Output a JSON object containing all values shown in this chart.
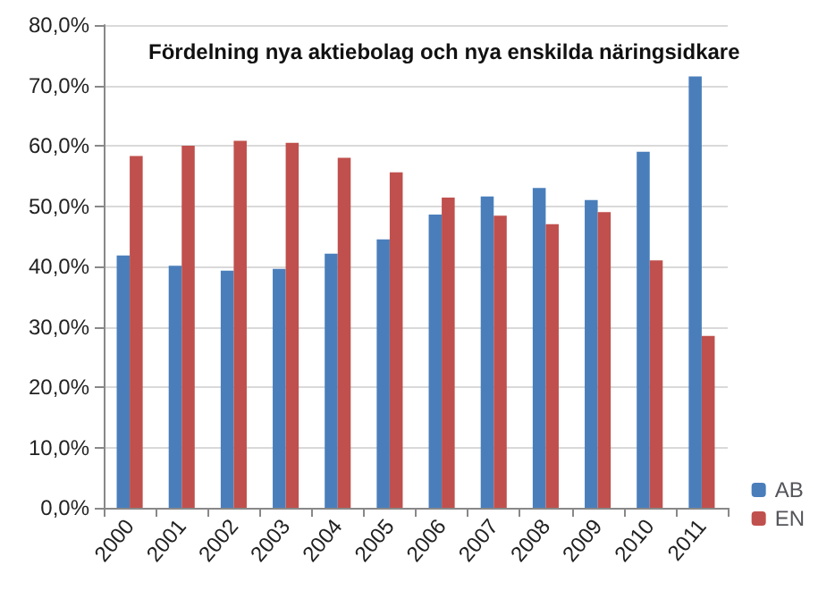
{
  "chart_data": {
    "type": "bar",
    "title": "Fördelning nya aktiebolag och nya enskilda näringsidkare",
    "categories": [
      "2000",
      "2001",
      "2002",
      "2003",
      "2004",
      "2005",
      "2006",
      "2007",
      "2008",
      "2009",
      "2010",
      "2011"
    ],
    "series": [
      {
        "name": "AB",
        "color": "#4a7ebb",
        "values": [
          41.8,
          40.1,
          39.3,
          39.6,
          42.1,
          44.5,
          48.6,
          51.6,
          53.0,
          51.0,
          59.0,
          71.5
        ]
      },
      {
        "name": "EN",
        "color": "#c0504d",
        "values": [
          58.3,
          60.0,
          60.8,
          60.5,
          58.0,
          55.6,
          51.4,
          48.4,
          47.0,
          49.0,
          41.0,
          28.5
        ]
      }
    ],
    "ylim": [
      0,
      80
    ],
    "yticks": [
      {
        "value": 0,
        "label": "0,0%"
      },
      {
        "value": 10,
        "label": "10,0%"
      },
      {
        "value": 20,
        "label": "20,0%"
      },
      {
        "value": 30,
        "label": "30,0%"
      },
      {
        "value": 40,
        "label": "40,0%"
      },
      {
        "value": 50,
        "label": "50,0%"
      },
      {
        "value": 60,
        "label": "60,0%"
      },
      {
        "value": 70,
        "label": "70,0%"
      },
      {
        "value": 80,
        "label": "80,0%"
      }
    ],
    "grid": "y",
    "legend": "right"
  }
}
